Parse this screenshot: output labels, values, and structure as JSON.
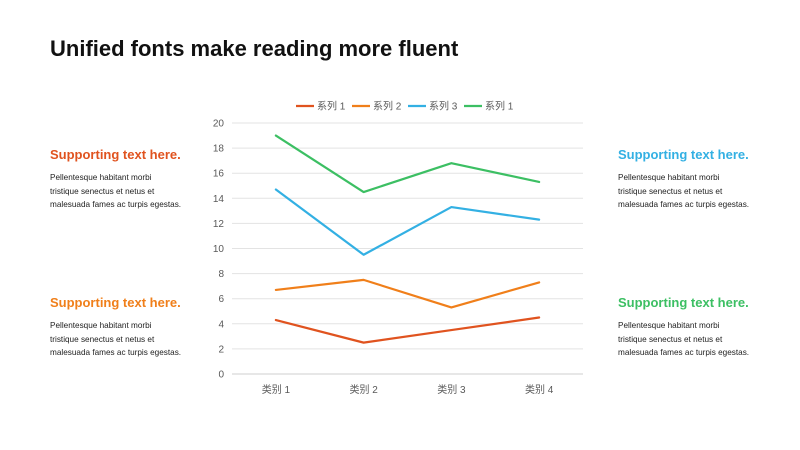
{
  "title": "Unified fonts make reading more fluent",
  "blocks": [
    {
      "heading": "Supporting text here.",
      "body_lines": [
        "Pellentesque habitant morbi",
        "tristique senectus et netus et",
        "malesuada fames ac turpis egestas."
      ],
      "color": "#E0531F"
    },
    {
      "heading": "Supporting text here.",
      "body_lines": [
        "Pellentesque habitant morbi",
        "tristique senectus et netus et",
        "malesuada fames ac turpis egestas."
      ],
      "color": "#F07F1A"
    },
    {
      "heading": "Supporting text here.",
      "body_lines": [
        "Pellentesque habitant morbi",
        "tristique senectus et netus et",
        "malesuada fames ac turpis egestas."
      ],
      "color": "#33B0E3"
    },
    {
      "heading": "Supporting text here.",
      "body_lines": [
        "Pellentesque habitant morbi",
        "tristique senectus et netus et",
        "malesuada fames ac turpis egestas."
      ],
      "color": "#3CBF63"
    }
  ],
  "chart_data": {
    "type": "line",
    "categories": [
      "类别 1",
      "类别 2",
      "类别 3",
      "类别 4"
    ],
    "series": [
      {
        "name": "系列 1",
        "values": [
          4.3,
          2.5,
          3.5,
          4.5
        ],
        "color": "#E0531F"
      },
      {
        "name": "系列 2",
        "values": [
          6.7,
          7.5,
          5.3,
          7.3
        ],
        "color": "#F07F1A"
      },
      {
        "name": "系列 3",
        "values": [
          14.7,
          9.5,
          13.3,
          12.3
        ],
        "color": "#33B0E3"
      },
      {
        "name": "系列 1",
        "values": [
          19.0,
          14.5,
          16.8,
          15.3
        ],
        "color": "#3CBF63"
      }
    ],
    "ylim": [
      0,
      20
    ],
    "yticks": [
      0,
      2,
      4,
      6,
      8,
      10,
      12,
      14,
      16,
      18,
      20
    ],
    "grid": true,
    "legend": "top"
  }
}
